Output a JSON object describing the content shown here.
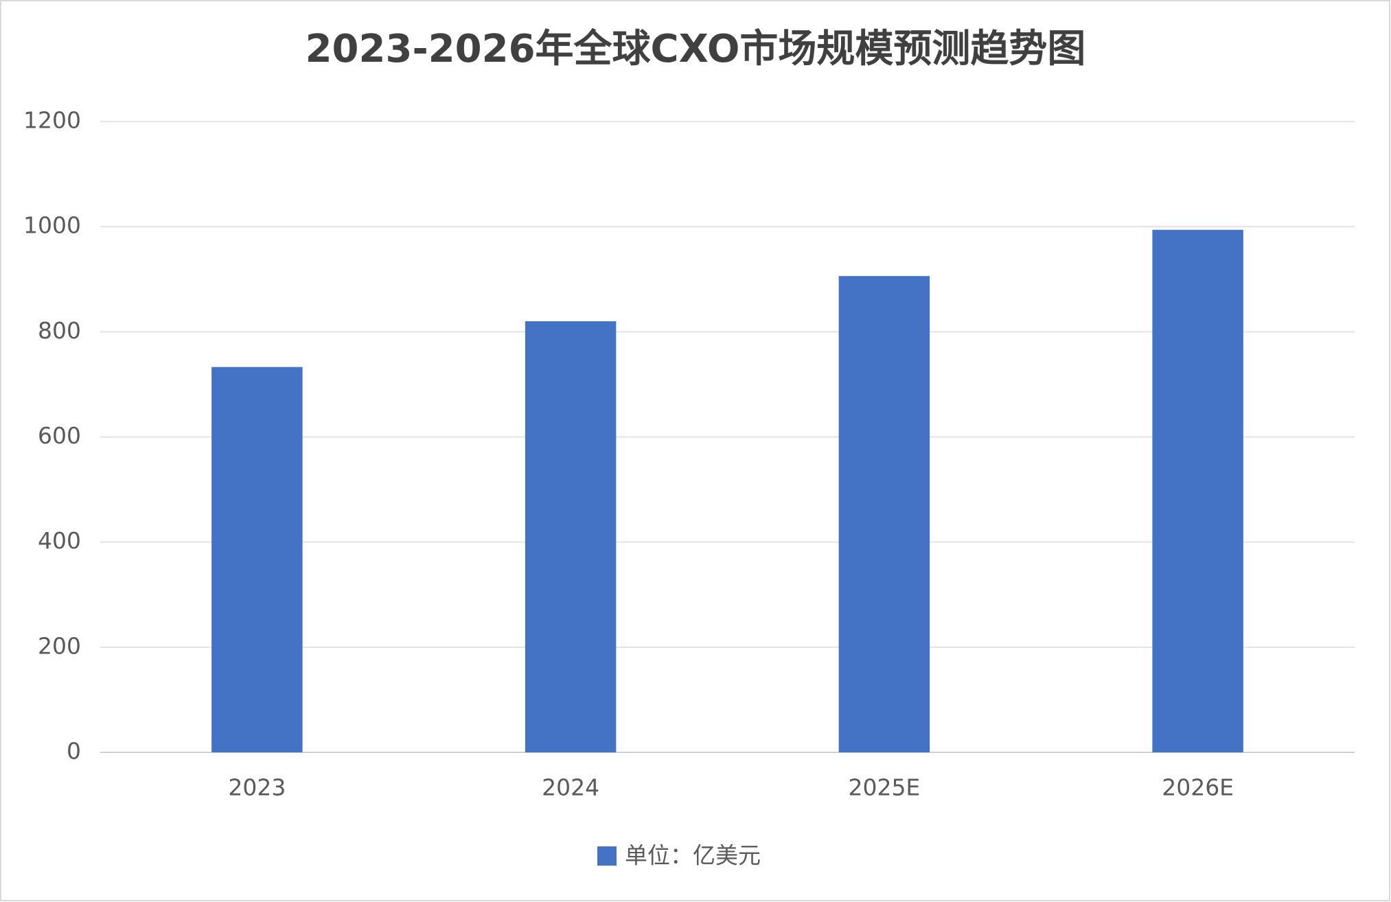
{
  "chart_data": {
    "type": "bar",
    "title": "2023-2026年全球CXO市场规模预测趋势图",
    "categories": [
      "2023",
      "2024",
      "2025E",
      "2026E"
    ],
    "series": [
      {
        "name": "单位：亿美元",
        "color": "#4472c4",
        "values": [
          733,
          820,
          906,
          994
        ]
      }
    ],
    "ylim": [
      0,
      1200
    ],
    "yticks": [
      0,
      200,
      400,
      600,
      800,
      1000,
      1200
    ],
    "grid": true,
    "legend": "bottom"
  }
}
